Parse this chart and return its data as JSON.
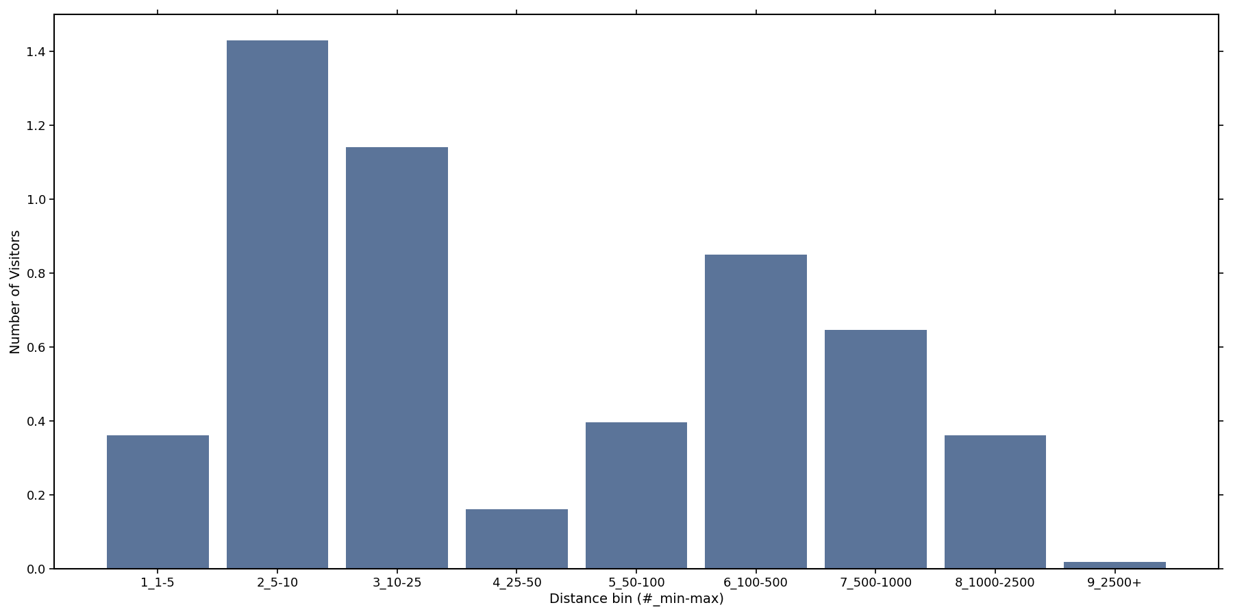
{
  "categories": [
    "1_1-5",
    "2_5-10",
    "3_10-25",
    "4_25-50",
    "5_50-100",
    "6_100-500",
    "7_500-1000",
    "8_1000-2500",
    "9_2500+"
  ],
  "values": [
    36000000.0,
    143000000.0,
    114000000.0,
    16000000.0,
    39500000.0,
    85000000.0,
    64500000.0,
    36000000.0,
    1800000.0
  ],
  "bar_color": "#5b7499",
  "xlabel": "Distance bin (#_min-max)",
  "ylabel": "Number of Visitors",
  "ylim": [
    0,
    150000000.0
  ],
  "yticks": [
    0.0,
    0.2,
    0.4,
    0.6,
    0.8,
    1.0,
    1.2,
    1.4
  ],
  "background_color": "#ffffff",
  "figsize": [
    18,
    9
  ],
  "dpi": 100,
  "bar_width": 0.85,
  "xlabel_fontsize": 14,
  "ylabel_fontsize": 14,
  "tick_fontsize": 13
}
